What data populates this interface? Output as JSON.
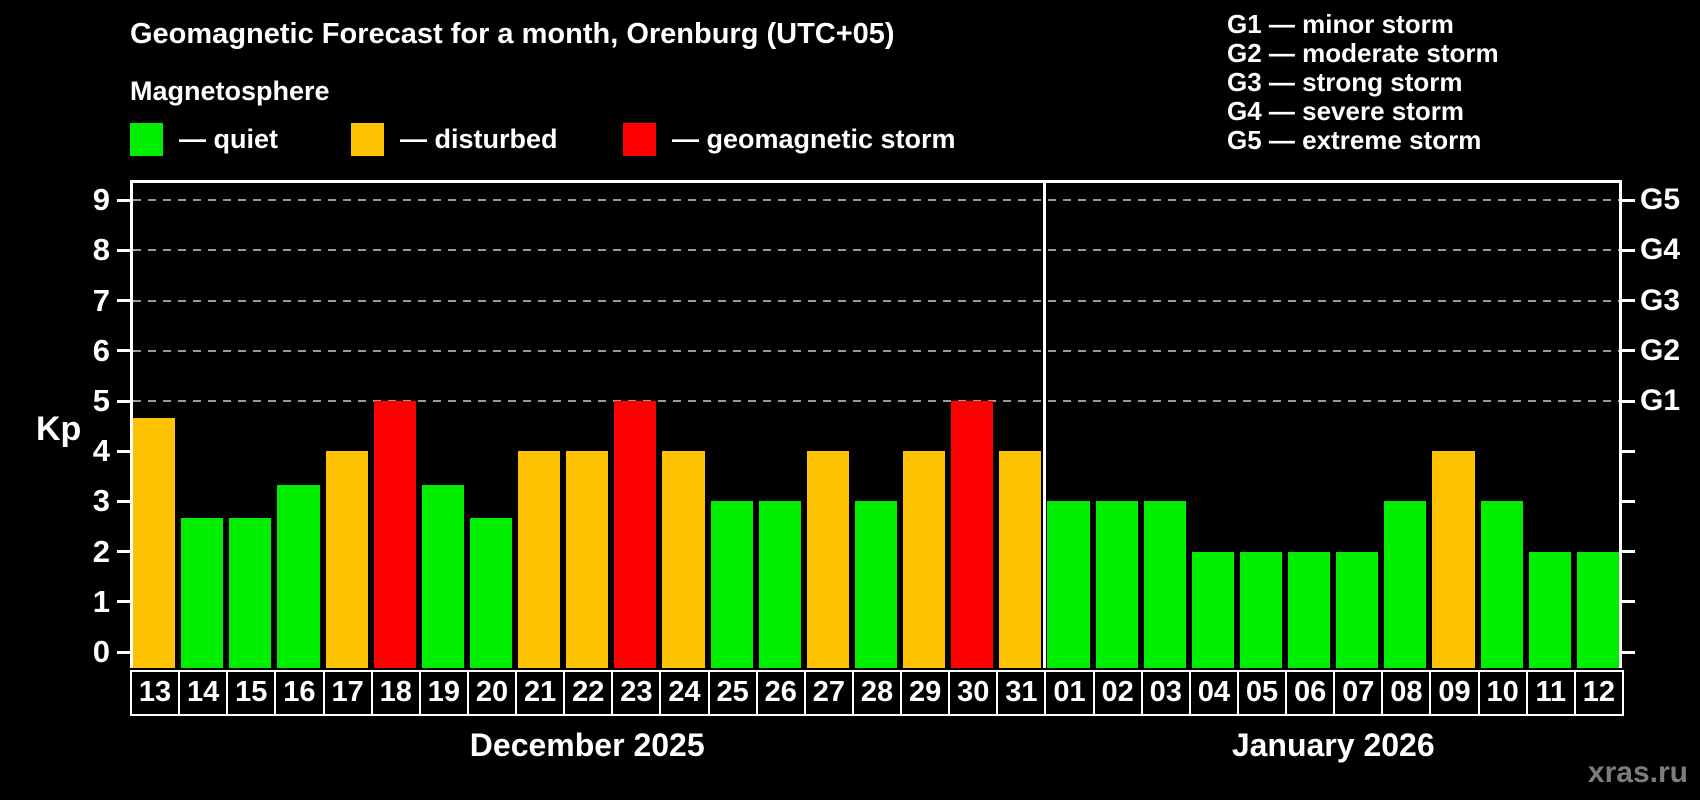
{
  "title": "Geomagnetic Forecast for a month, Orenburg (UTC+05)",
  "subtitle": "Magnetosphere",
  "watermark": "xras.ru",
  "colors": {
    "quiet": "#00EE00",
    "disturbed": "#FFC200",
    "storm": "#FF0000",
    "gridline": "#9A9A9A",
    "axis": "#FFFFFF",
    "background": "#000000"
  },
  "legend": [
    {
      "key": "quiet",
      "label": "— quiet"
    },
    {
      "key": "disturbed",
      "label": "— disturbed"
    },
    {
      "key": "storm",
      "label": "— geomagnetic storm"
    }
  ],
  "g_scale_legend": [
    "G1 — minor storm",
    "G2 — moderate storm",
    "G3 — strong storm",
    "G4 — severe storm",
    "G5 — extreme storm"
  ],
  "chart_data": {
    "type": "bar",
    "ylabel": "Kp",
    "ylim": [
      0,
      9.5
    ],
    "yticks": [
      0,
      1,
      2,
      3,
      4,
      5,
      6,
      7,
      8,
      9
    ],
    "gridlines_at": [
      5,
      6,
      7,
      8,
      9
    ],
    "grid": "dashed-horizontal",
    "right_axis_labels": [
      {
        "kp": 5,
        "label": "G1"
      },
      {
        "kp": 6,
        "label": "G2"
      },
      {
        "kp": 7,
        "label": "G3"
      },
      {
        "kp": 8,
        "label": "G4"
      },
      {
        "kp": 9,
        "label": "G5"
      }
    ],
    "months": [
      {
        "label": "December 2025",
        "days": [
          {
            "day": "13",
            "kp": 4.67,
            "status": "disturbed"
          },
          {
            "day": "14",
            "kp": 2.67,
            "status": "quiet"
          },
          {
            "day": "15",
            "kp": 2.67,
            "status": "quiet"
          },
          {
            "day": "16",
            "kp": 3.33,
            "status": "quiet"
          },
          {
            "day": "17",
            "kp": 4,
            "status": "disturbed"
          },
          {
            "day": "18",
            "kp": 5,
            "status": "storm"
          },
          {
            "day": "19",
            "kp": 3.33,
            "status": "quiet"
          },
          {
            "day": "20",
            "kp": 2.67,
            "status": "quiet"
          },
          {
            "day": "21",
            "kp": 4,
            "status": "disturbed"
          },
          {
            "day": "22",
            "kp": 4,
            "status": "disturbed"
          },
          {
            "day": "23",
            "kp": 5,
            "status": "storm"
          },
          {
            "day": "24",
            "kp": 4,
            "status": "disturbed"
          },
          {
            "day": "25",
            "kp": 3,
            "status": "quiet"
          },
          {
            "day": "26",
            "kp": 3,
            "status": "quiet"
          },
          {
            "day": "27",
            "kp": 4,
            "status": "disturbed"
          },
          {
            "day": "28",
            "kp": 3,
            "status": "quiet"
          },
          {
            "day": "29",
            "kp": 4,
            "status": "disturbed"
          },
          {
            "day": "30",
            "kp": 5,
            "status": "storm"
          },
          {
            "day": "31",
            "kp": 4,
            "status": "disturbed"
          }
        ]
      },
      {
        "label": "January 2026",
        "days": [
          {
            "day": "01",
            "kp": 3,
            "status": "quiet"
          },
          {
            "day": "02",
            "kp": 3,
            "status": "quiet"
          },
          {
            "day": "03",
            "kp": 3,
            "status": "quiet"
          },
          {
            "day": "04",
            "kp": 2,
            "status": "quiet"
          },
          {
            "day": "05",
            "kp": 2,
            "status": "quiet"
          },
          {
            "day": "06",
            "kp": 2,
            "status": "quiet"
          },
          {
            "day": "07",
            "kp": 2,
            "status": "quiet"
          },
          {
            "day": "08",
            "kp": 3,
            "status": "quiet"
          },
          {
            "day": "09",
            "kp": 4,
            "status": "disturbed"
          },
          {
            "day": "10",
            "kp": 3,
            "status": "quiet"
          },
          {
            "day": "11",
            "kp": 2,
            "status": "quiet"
          },
          {
            "day": "12",
            "kp": 2,
            "status": "quiet"
          }
        ]
      }
    ]
  }
}
